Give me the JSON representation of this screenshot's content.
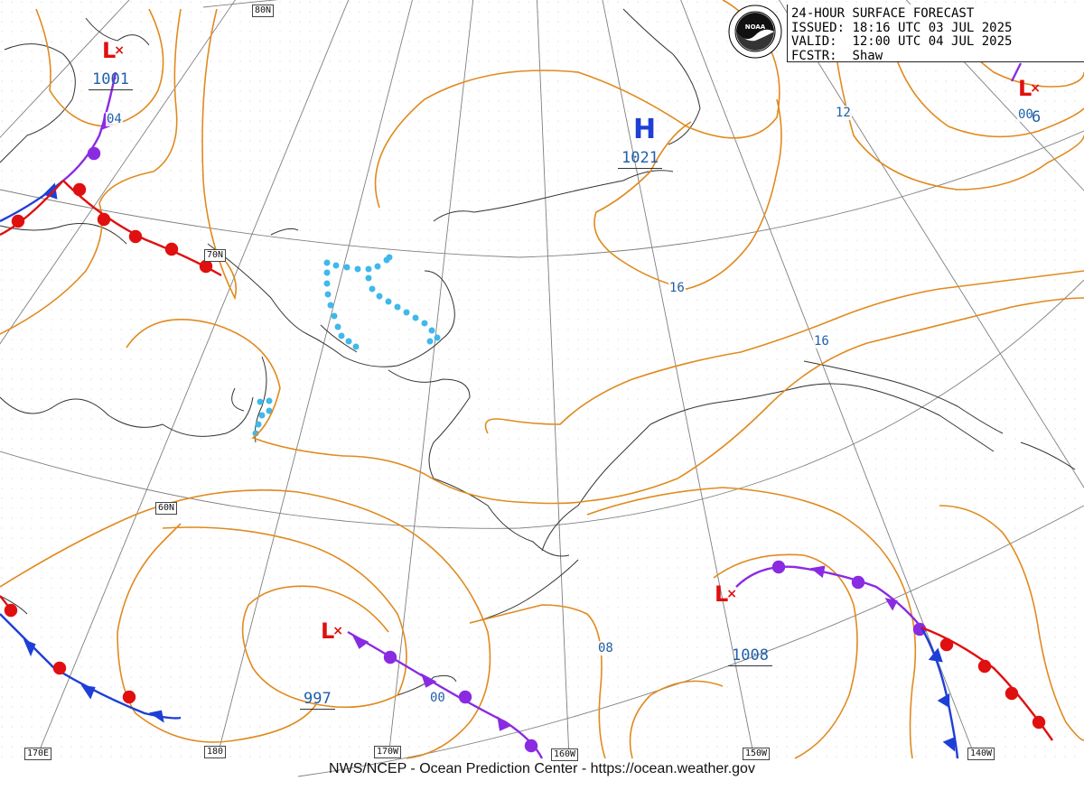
{
  "title_box": {
    "title": "24-HOUR SURFACE FORECAST",
    "issued_label": "ISSUED:",
    "issued_value": "18:16 UTC 03 JUL 2025",
    "valid_label": "VALID:",
    "valid_value": "12:00 UTC 04 JUL 2025",
    "forecaster_label": "FCSTR:",
    "forecaster_value": "Shaw"
  },
  "logo": {
    "text": "NOAA",
    "icon": "noaa-logo-icon"
  },
  "credit": "NWS/NCEP - Ocean Prediction Center - https://ocean.weather.gov",
  "lat_labels": [
    "80N",
    "70N",
    "60N"
  ],
  "lon_labels": [
    "170E",
    "180",
    "170W",
    "160W",
    "150W",
    "140W"
  ],
  "isobar_labels": [
    "04",
    "12",
    "00",
    "16",
    "16",
    "08",
    "00"
  ],
  "pressure_centers": [
    {
      "type": "L",
      "value": "1001"
    },
    {
      "type": "H",
      "value": "1021"
    },
    {
      "type": "L",
      "value": "6"
    },
    {
      "type": "L",
      "value": "997"
    },
    {
      "type": "L",
      "value": "1008"
    }
  ],
  "colors": {
    "isobar": "#e08a1e",
    "cold_front": "#1e3fd6",
    "warm_front": "#e01010",
    "occluded_front": "#8a2be2",
    "ice_edge": "#3fb8ec",
    "coast": "#333333",
    "grid": "#9a9a9a",
    "label": "#1f5fa8"
  }
}
